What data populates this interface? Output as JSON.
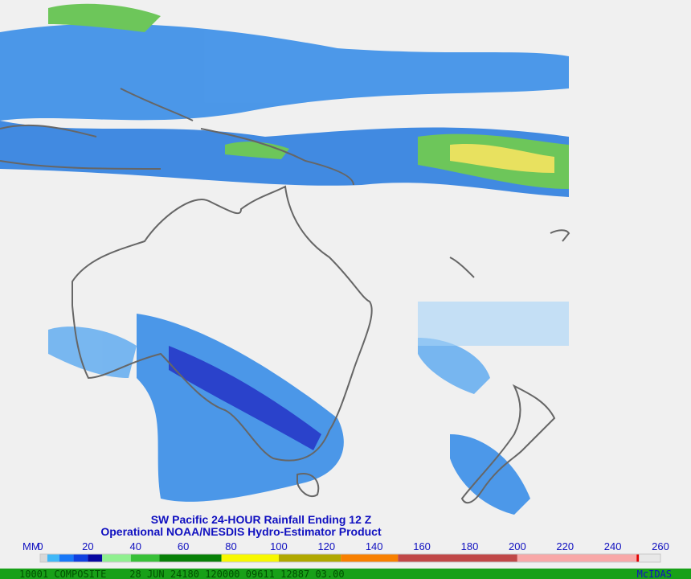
{
  "title": {
    "line1": "SW Pacific 24-HOUR Rainfall  Ending 12 Z",
    "line2": "Operational NOAA/NESDIS  Hydro-Estimator Product"
  },
  "scale": {
    "unit": "MM",
    "ticks": [
      0,
      20,
      40,
      60,
      80,
      100,
      120,
      140,
      160,
      180,
      200,
      220,
      240,
      260
    ],
    "segments": [
      {
        "from": 0,
        "to": 3,
        "color": "#d8d8d8"
      },
      {
        "from": 3,
        "to": 8,
        "color": "#40b8f8"
      },
      {
        "from": 8,
        "to": 14,
        "color": "#1878f8"
      },
      {
        "from": 14,
        "to": 20,
        "color": "#1040e0"
      },
      {
        "from": 20,
        "to": 26,
        "color": "#0808a0"
      },
      {
        "from": 26,
        "to": 38,
        "color": "#90f090"
      },
      {
        "from": 38,
        "to": 50,
        "color": "#38c038"
      },
      {
        "from": 50,
        "to": 76,
        "color": "#088008"
      },
      {
        "from": 76,
        "to": 100,
        "color": "#f8f800"
      },
      {
        "from": 100,
        "to": 126,
        "color": "#b0a800"
      },
      {
        "from": 126,
        "to": 150,
        "color": "#f88000"
      },
      {
        "from": 150,
        "to": 200,
        "color": "#c04848"
      },
      {
        "from": 200,
        "to": 250,
        "color": "#f8a8a8"
      },
      {
        "from": 250,
        "to": 251,
        "color": "#e00000"
      },
      {
        "from": 251,
        "to": 260,
        "color": "#e8e8e8"
      }
    ]
  },
  "status": {
    "text": "10001 COMPOSITE    28 JUN 24180 120000 09611 12887 03.00",
    "brand": "McIDAS"
  }
}
